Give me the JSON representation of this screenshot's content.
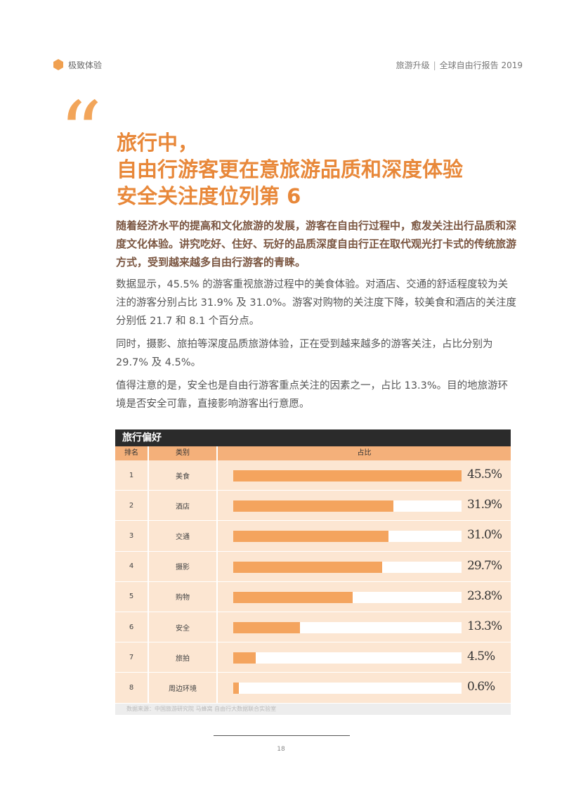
{
  "header": {
    "section": "极致体验",
    "report_left": "旅游升级",
    "report_sep": "|",
    "report_right": "全球自由行报告 2019",
    "accent_color": "#F0A050"
  },
  "quote_mark": "“",
  "title": {
    "line1": "旅行中，",
    "line2": "自由行游客更在意旅游品质和深度体验",
    "line3": "安全关注度位列第 6"
  },
  "lead": "随着经济水平的提高和文化旅游的发展，游客在自由行过程中，愈发关注出行品质和深度文化体验。讲究吃好、住好、玩好的品质深度自由行正在取代观光打卡式的传统旅游方式，受到越来越多自由行游客的青睐。",
  "paragraphs": {
    "p1": "数据显示，45.5% 的游客重视旅游过程中的美食体验。对酒店、交通的舒适程度较为关注的游客分别占比 31.9% 及 31.0%。游客对购物的关注度下降，较美食和酒店的关注度分别低 21.7 和 8.1 个百分点。",
    "p2": "同时，摄影、旅拍等深度品质旅游体验，正在受到越来越多的游客关注，占比分别为 29.7% 及 4.5%。",
    "p3": "值得注意的是，安全也是自由行游客重点关注的因素之一，占比 13.3%。目的地旅游环境是否安全可靠，直接影响游客出行意愿。"
  },
  "table": {
    "title": "旅行偏好",
    "headers": {
      "rank": "排名",
      "category": "类别",
      "share": "占比"
    },
    "source": "数据来源：中国旅游研究院 马蜂窝 自由行大数据联合实验室"
  },
  "chart_data": {
    "type": "bar",
    "title": "旅行偏好",
    "categories": [
      "美食",
      "酒店",
      "交通",
      "摄影",
      "购物",
      "安全",
      "旅拍",
      "周边环境"
    ],
    "ranks": [
      "1",
      "2",
      "3",
      "4",
      "5",
      "6",
      "7",
      "8"
    ],
    "values": [
      45.5,
      31.9,
      31.0,
      29.7,
      23.8,
      13.3,
      4.5,
      0.6
    ],
    "labels": [
      "45.5%",
      "31.9%",
      "31.0%",
      "29.7%",
      "23.8%",
      "13.3%",
      "4.5%",
      "0.6%"
    ],
    "xlim": [
      0,
      45.5
    ],
    "bar_color": "#F4A45E"
  },
  "footer": {
    "page_number": "18"
  }
}
